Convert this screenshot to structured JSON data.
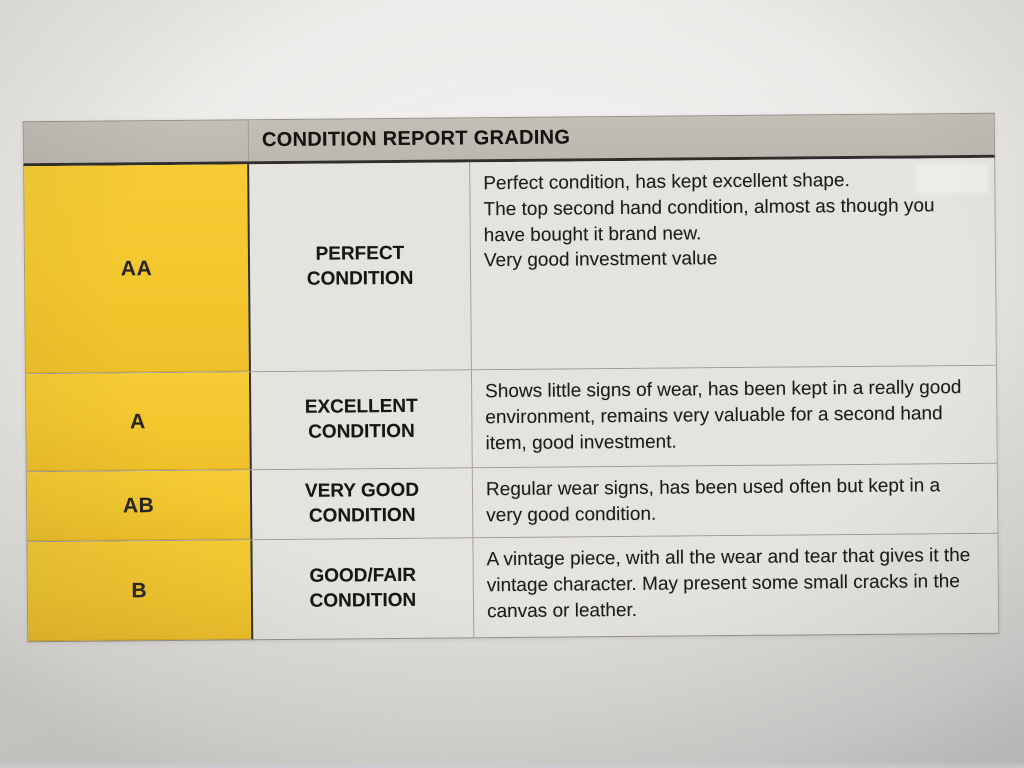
{
  "document": {
    "header": {
      "title": "CONDITION REPORT GRADING"
    },
    "rows": [
      {
        "grade": "AA",
        "label_lines": [
          "PERFECT",
          "CONDITION"
        ],
        "paragraphs": [
          "Perfect condition, has kept excellent shape.",
          "The top second hand condition, almost as though you have bought it brand new.",
          "Very good investment value"
        ]
      },
      {
        "grade": "A",
        "label_lines": [
          "EXCELLENT",
          "CONDITION"
        ],
        "paragraphs": [
          "Shows little signs of wear, has been kept in a really good environment, remains very valuable for a second hand item, good investment."
        ]
      },
      {
        "grade": "AB",
        "label_lines": [
          "VERY GOOD",
          "CONDITION"
        ],
        "paragraphs": [
          "Regular wear signs, has been used often but kept in a very good condition."
        ]
      },
      {
        "grade": "B",
        "label_lines": [
          "GOOD/FAIR",
          "CONDITION"
        ],
        "paragraphs": [
          "A vintage piece, with all the wear and tear that gives it the vintage character. May present some small cracks in the canvas or leather."
        ]
      }
    ],
    "colors": {
      "grade_column": "#F3C72E",
      "header_band": "#BDB8B0",
      "cell_background": "#E5E3E0",
      "paper": "#E7E5E2",
      "text": "#1D1C1A"
    }
  }
}
